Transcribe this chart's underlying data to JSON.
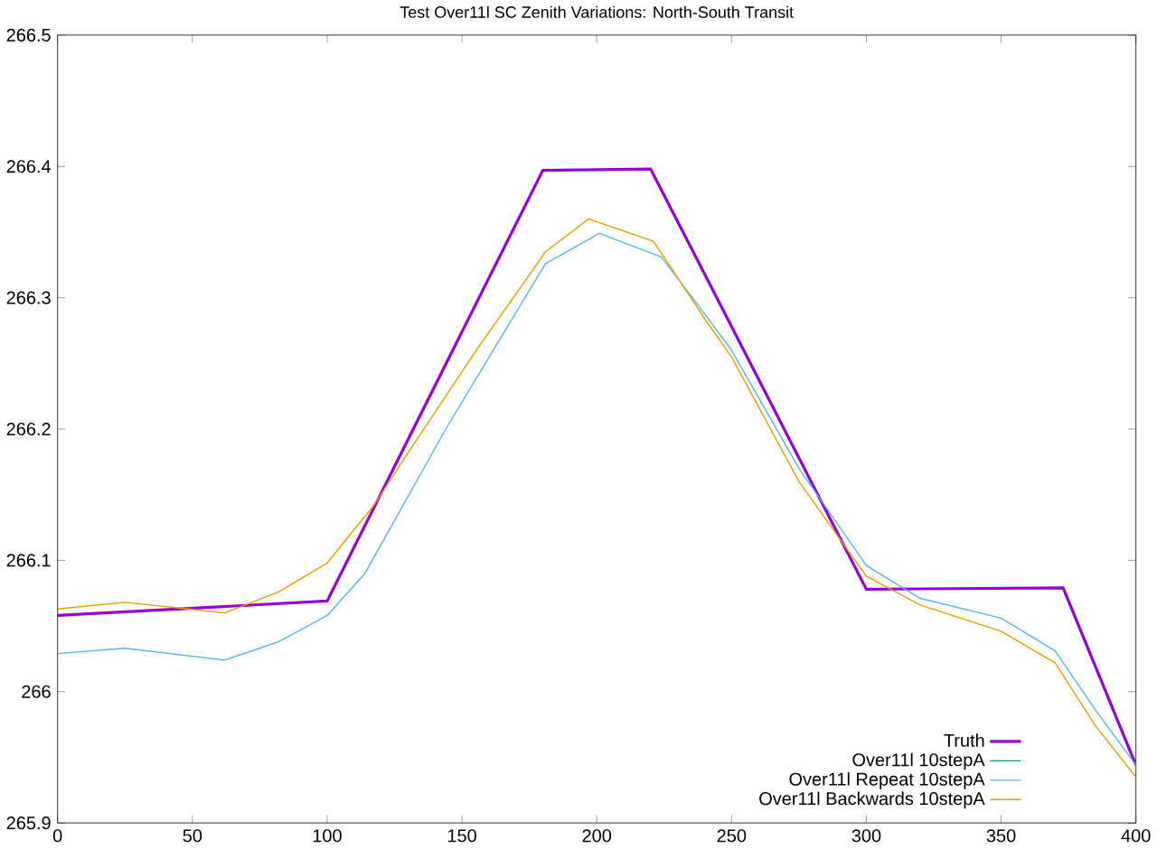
{
  "chart_data": {
    "type": "line",
    "title": "Test Over11l SC Zenith Variations: North-South Transit",
    "xlim": [
      0,
      400
    ],
    "xticks": [
      0,
      50,
      100,
      150,
      200,
      250,
      300,
      350,
      400
    ],
    "ylim": [
      265.9,
      266.5
    ],
    "yticks": [
      265.9,
      266,
      266.1,
      266.2,
      266.3,
      266.4,
      266.5
    ],
    "grid": false,
    "legend": "bottom right",
    "line_style": "solid",
    "marker": "none",
    "series": [
      {
        "name": "Truth",
        "color": "#9400d3",
        "x": [
          0,
          100,
          180,
          220,
          300,
          373,
          400
        ],
        "values": [
          266.058,
          266.069,
          266.397,
          266.398,
          266.078,
          266.079,
          265.944
        ]
      },
      {
        "name": "Over11l 10stepA",
        "color": "#009e73"
      },
      {
        "name": "Over11l Repeat 10stepA",
        "color": "#56b4e9",
        "x": [
          0,
          25,
          62,
          82,
          100,
          114,
          144,
          181,
          201,
          224,
          241,
          250,
          275,
          300,
          320,
          350,
          370,
          385,
          400
        ],
        "values": [
          266.029,
          266.033,
          266.024,
          266.038,
          266.058,
          266.09,
          266.2,
          266.326,
          266.349,
          266.331,
          266.285,
          266.26,
          266.17,
          266.096,
          266.071,
          266.056,
          266.031,
          265.986,
          265.944
        ]
      },
      {
        "name": "Over11l Backwards 10stepA",
        "color": "#e69f00",
        "x": [
          0,
          25,
          62,
          82,
          100,
          117,
          131,
          156,
          181,
          197,
          221,
          241,
          250,
          275,
          300,
          320,
          350,
          370,
          385,
          400
        ],
        "values": [
          266.063,
          266.068,
          266.06,
          266.076,
          266.098,
          266.141,
          266.185,
          266.262,
          266.335,
          266.36,
          266.343,
          266.281,
          266.255,
          266.16,
          266.088,
          266.066,
          266.046,
          266.022,
          265.974,
          265.935
        ]
      }
    ]
  }
}
